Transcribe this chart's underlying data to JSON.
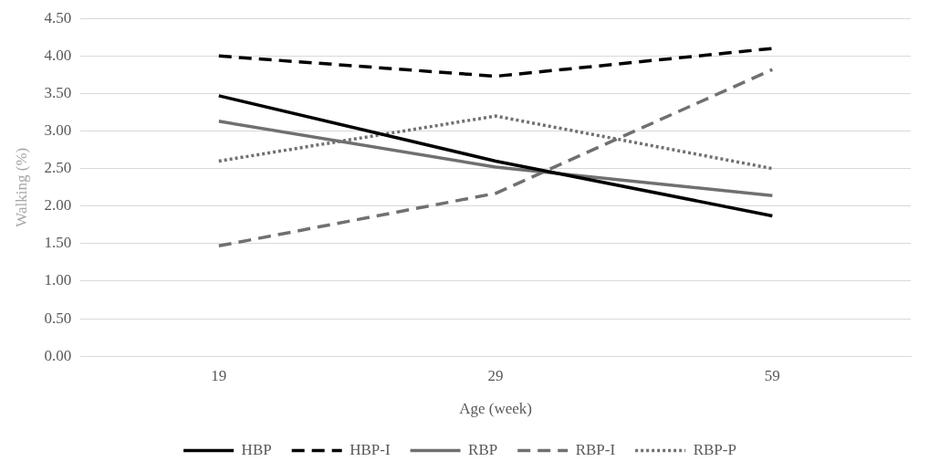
{
  "chart_data": {
    "type": "line",
    "xlabel": "Age (week)",
    "ylabel": "Walking (%)",
    "categories": [
      "19",
      "29",
      "59"
    ],
    "ylim": [
      0,
      4.5
    ],
    "yticks": [
      {
        "value": 0,
        "label": "0.00"
      },
      {
        "value": 0.5,
        "label": "0.50"
      },
      {
        "value": 1,
        "label": "1.00"
      },
      {
        "value": 1.5,
        "label": "1.50"
      },
      {
        "value": 2,
        "label": "2.00"
      },
      {
        "value": 2.5,
        "label": "2.50"
      },
      {
        "value": 3,
        "label": "3.00"
      },
      {
        "value": 3.5,
        "label": "3.50"
      },
      {
        "value": 4,
        "label": "4.00"
      },
      {
        "value": 4.5,
        "label": "4.50"
      }
    ],
    "grid": "y",
    "legend": "bottom",
    "marker": "none",
    "series": [
      {
        "name": "HBP",
        "color": "#000000",
        "line_style": "solid",
        "values": [
          3.47,
          2.6,
          1.87
        ]
      },
      {
        "name": "HBP-I",
        "color": "#000000",
        "line_style": "dashed",
        "values": [
          4.0,
          3.73,
          4.1
        ]
      },
      {
        "name": "RBP",
        "color": "#707070",
        "line_style": "solid",
        "values": [
          3.13,
          2.52,
          2.14
        ]
      },
      {
        "name": "RBP-I",
        "color": "#707070",
        "line_style": "dashed",
        "values": [
          1.47,
          2.17,
          3.82
        ]
      },
      {
        "name": "RBP-P",
        "color": "#707070",
        "line_style": "dotted",
        "values": [
          2.6,
          3.2,
          2.5
        ]
      }
    ]
  }
}
